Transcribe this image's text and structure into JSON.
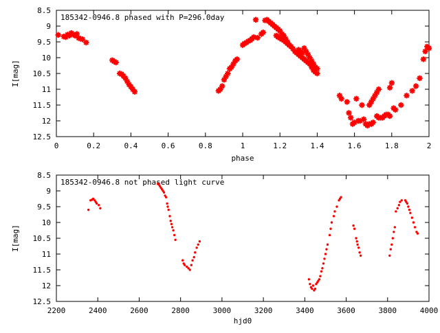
{
  "colors": {
    "points": "#ff0000",
    "axes": "#000000",
    "grid": "#000000",
    "background": "#ffffff"
  },
  "chart_data": [
    {
      "type": "scatter",
      "title": "185342-0946.8 phased with P=296.0day",
      "xlabel": "phase",
      "ylabel": "I[mag]",
      "xlim": [
        0,
        2
      ],
      "ylim": [
        12.5,
        8.5
      ],
      "y_inverted": true,
      "grid": false,
      "marker": "star",
      "x_ticks": [
        0,
        0.2,
        0.4,
        0.6,
        0.8,
        1,
        1.2,
        1.4,
        1.6,
        1.8,
        2
      ],
      "x_tick_labels": [
        "0",
        "0.2",
        "0.4",
        "0.6",
        "0.8",
        "1",
        "1.2",
        "1.4",
        "1.6",
        "1.8",
        "2"
      ],
      "y_ticks": [
        8.5,
        9,
        9.5,
        10,
        10.5,
        11,
        11.5,
        12,
        12.5
      ],
      "y_tick_labels": [
        "8.5",
        "9",
        "9.5",
        "10",
        "10.5",
        "11",
        "11.5",
        "12",
        "12.5"
      ],
      "series": [
        {
          "points": [
            [
              0.01,
              9.28
            ],
            [
              0.04,
              9.33
            ],
            [
              0.05,
              9.35
            ],
            [
              0.06,
              9.27
            ],
            [
              0.07,
              9.3
            ],
            [
              0.08,
              9.22
            ],
            [
              0.09,
              9.27
            ],
            [
              0.1,
              9.3
            ],
            [
              0.11,
              9.25
            ],
            [
              0.12,
              9.38
            ],
            [
              0.13,
              9.4
            ],
            [
              0.14,
              9.42
            ],
            [
              0.16,
              9.52
            ],
            [
              0.3,
              10.08
            ],
            [
              0.31,
              10.12
            ],
            [
              0.32,
              10.15
            ],
            [
              0.34,
              10.5
            ],
            [
              0.35,
              10.52
            ],
            [
              0.36,
              10.58
            ],
            [
              0.37,
              10.65
            ],
            [
              0.38,
              10.75
            ],
            [
              0.39,
              10.85
            ],
            [
              0.4,
              10.92
            ],
            [
              0.41,
              11.0
            ],
            [
              0.42,
              11.08
            ],
            [
              0.87,
              11.05
            ],
            [
              0.88,
              11.0
            ],
            [
              0.89,
              10.9
            ],
            [
              0.9,
              10.7
            ],
            [
              0.91,
              10.6
            ],
            [
              0.92,
              10.5
            ],
            [
              0.93,
              10.35
            ],
            [
              0.94,
              10.3
            ],
            [
              0.95,
              10.2
            ],
            [
              0.96,
              10.1
            ],
            [
              0.97,
              10.05
            ],
            [
              1.0,
              9.6
            ],
            [
              1.01,
              9.55
            ],
            [
              1.02,
              9.52
            ],
            [
              1.03,
              9.48
            ],
            [
              1.04,
              9.45
            ],
            [
              1.05,
              9.4
            ],
            [
              1.06,
              9.35
            ],
            [
              1.08,
              9.37
            ],
            [
              1.07,
              8.8
            ],
            [
              1.1,
              9.25
            ],
            [
              1.11,
              9.2
            ],
            [
              1.12,
              8.82
            ],
            [
              1.13,
              8.8
            ],
            [
              1.14,
              8.85
            ],
            [
              1.15,
              8.9
            ],
            [
              1.16,
              8.95
            ],
            [
              1.17,
              9.0
            ],
            [
              1.18,
              9.05
            ],
            [
              1.19,
              9.1
            ],
            [
              1.2,
              9.15
            ],
            [
              1.21,
              9.25
            ],
            [
              1.22,
              9.3
            ],
            [
              1.23,
              9.4
            ],
            [
              1.24,
              9.5
            ],
            [
              1.25,
              9.6
            ],
            [
              1.18,
              9.3
            ],
            [
              1.19,
              9.35
            ],
            [
              1.2,
              9.38
            ],
            [
              1.21,
              9.42
            ],
            [
              1.22,
              9.45
            ],
            [
              1.23,
              9.5
            ],
            [
              1.24,
              9.55
            ],
            [
              1.25,
              9.6
            ],
            [
              1.26,
              9.65
            ],
            [
              1.27,
              9.72
            ],
            [
              1.28,
              9.8
            ],
            [
              1.29,
              9.85
            ],
            [
              1.3,
              9.9
            ],
            [
              1.31,
              9.95
            ],
            [
              1.32,
              10.0
            ],
            [
              1.3,
              9.75
            ],
            [
              1.31,
              9.8
            ],
            [
              1.32,
              9.85
            ],
            [
              1.33,
              10.05
            ],
            [
              1.34,
              10.1
            ],
            [
              1.35,
              10.15
            ],
            [
              1.36,
              10.2
            ],
            [
              1.37,
              10.3
            ],
            [
              1.38,
              10.4
            ],
            [
              1.39,
              10.45
            ],
            [
              1.4,
              10.5
            ],
            [
              1.33,
              9.7
            ],
            [
              1.34,
              9.8
            ],
            [
              1.35,
              9.9
            ],
            [
              1.36,
              10.0
            ],
            [
              1.37,
              10.1
            ],
            [
              1.38,
              10.2
            ],
            [
              1.39,
              10.3
            ],
            [
              1.4,
              10.35
            ],
            [
              1.52,
              11.2
            ],
            [
              1.53,
              11.3
            ],
            [
              1.56,
              11.4
            ],
            [
              1.57,
              11.75
            ],
            [
              1.58,
              11.9
            ],
            [
              1.59,
              12.1
            ],
            [
              1.6,
              12.05
            ],
            [
              1.61,
              11.3
            ],
            [
              1.62,
              12.0
            ],
            [
              1.63,
              12.0
            ],
            [
              1.64,
              11.5
            ],
            [
              1.65,
              11.95
            ],
            [
              1.66,
              12.1
            ],
            [
              1.67,
              12.15
            ],
            [
              1.68,
              12.1
            ],
            [
              1.69,
              12.1
            ],
            [
              1.7,
              12.05
            ],
            [
              1.68,
              11.5
            ],
            [
              1.69,
              11.4
            ],
            [
              1.7,
              11.3
            ],
            [
              1.71,
              11.2
            ],
            [
              1.72,
              11.1
            ],
            [
              1.73,
              11.0
            ],
            [
              1.72,
              11.85
            ],
            [
              1.73,
              11.9
            ],
            [
              1.74,
              11.9
            ],
            [
              1.75,
              11.9
            ],
            [
              1.76,
              11.85
            ],
            [
              1.77,
              11.8
            ],
            [
              1.78,
              11.8
            ],
            [
              1.79,
              11.85
            ],
            [
              1.79,
              10.95
            ],
            [
              1.8,
              10.8
            ],
            [
              1.81,
              11.6
            ],
            [
              1.82,
              11.65
            ],
            [
              1.85,
              11.5
            ],
            [
              1.88,
              11.2
            ],
            [
              1.91,
              11.05
            ],
            [
              1.93,
              10.9
            ],
            [
              1.95,
              10.65
            ],
            [
              1.97,
              10.05
            ],
            [
              1.98,
              9.8
            ],
            [
              1.99,
              9.65
            ],
            [
              2.0,
              9.7
            ]
          ]
        }
      ]
    },
    {
      "type": "scatter",
      "title": "185342-0946.8 not phased light curve",
      "xlabel": "hjd0",
      "ylabel": "I[mag]",
      "xlim": [
        2200,
        4000
      ],
      "ylim": [
        12.5,
        8.5
      ],
      "y_inverted": true,
      "grid": false,
      "marker": "dot",
      "x_ticks": [
        2200,
        2400,
        2600,
        2800,
        3000,
        3200,
        3400,
        3600,
        3800,
        4000
      ],
      "x_tick_labels": [
        "2200",
        "2400",
        "2600",
        "2800",
        "3000",
        "3200",
        "3400",
        "3600",
        "3800",
        "4000"
      ],
      "y_ticks": [
        8.5,
        9,
        9.5,
        10,
        10.5,
        11,
        11.5,
        12,
        12.5
      ],
      "y_tick_labels": [
        "8.5",
        "9",
        "9.5",
        "10",
        "10.5",
        "11",
        "11.5",
        "12",
        "12.5"
      ],
      "series": [
        {
          "points": [
            [
              2355,
              9.6
            ],
            [
              2365,
              9.3
            ],
            [
              2372,
              9.28
            ],
            [
              2378,
              9.25
            ],
            [
              2385,
              9.3
            ],
            [
              2390,
              9.35
            ],
            [
              2395,
              9.4
            ],
            [
              2405,
              9.45
            ],
            [
              2412,
              9.55
            ],
            [
              2690,
              8.78
            ],
            [
              2695,
              8.8
            ],
            [
              2700,
              8.85
            ],
            [
              2705,
              8.9
            ],
            [
              2710,
              8.95
            ],
            [
              2715,
              9.0
            ],
            [
              2720,
              9.05
            ],
            [
              2725,
              9.15
            ],
            [
              2730,
              9.2
            ],
            [
              2735,
              9.4
            ],
            [
              2738,
              9.5
            ],
            [
              2742,
              9.6
            ],
            [
              2748,
              9.8
            ],
            [
              2752,
              9.95
            ],
            [
              2756,
              10.05
            ],
            [
              2760,
              10.15
            ],
            [
              2765,
              10.25
            ],
            [
              2770,
              10.4
            ],
            [
              2775,
              10.55
            ],
            [
              2810,
              11.2
            ],
            [
              2815,
              11.3
            ],
            [
              2820,
              11.35
            ],
            [
              2830,
              11.4
            ],
            [
              2838,
              11.45
            ],
            [
              2845,
              11.5
            ],
            [
              2852,
              11.35
            ],
            [
              2858,
              11.2
            ],
            [
              2865,
              11.1
            ],
            [
              2870,
              10.95
            ],
            [
              2878,
              10.8
            ],
            [
              2885,
              10.7
            ],
            [
              2892,
              10.6
            ],
            [
              3420,
              11.8
            ],
            [
              3425,
              11.95
            ],
            [
              3430,
              12.05
            ],
            [
              3435,
              12.1
            ],
            [
              3440,
              12.0
            ],
            [
              3445,
              12.15
            ],
            [
              3450,
              12.1
            ],
            [
              3455,
              11.95
            ],
            [
              3460,
              11.9
            ],
            [
              3465,
              11.85
            ],
            [
              3470,
              11.8
            ],
            [
              3475,
              11.7
            ],
            [
              3480,
              11.55
            ],
            [
              3485,
              11.45
            ],
            [
              3490,
              11.3
            ],
            [
              3495,
              11.15
            ],
            [
              3500,
              11.0
            ],
            [
              3505,
              10.85
            ],
            [
              3510,
              10.7
            ],
            [
              3520,
              10.4
            ],
            [
              3525,
              10.2
            ],
            [
              3530,
              10.0
            ],
            [
              3540,
              9.8
            ],
            [
              3545,
              9.65
            ],
            [
              3555,
              9.5
            ],
            [
              3565,
              9.3
            ],
            [
              3570,
              9.25
            ],
            [
              3575,
              9.2
            ],
            [
              3635,
              10.1
            ],
            [
              3640,
              10.2
            ],
            [
              3648,
              10.5
            ],
            [
              3652,
              10.6
            ],
            [
              3655,
              10.7
            ],
            [
              3660,
              10.8
            ],
            [
              3665,
              10.95
            ],
            [
              3670,
              11.05
            ],
            [
              3810,
              11.05
            ],
            [
              3815,
              10.85
            ],
            [
              3820,
              10.7
            ],
            [
              3825,
              10.5
            ],
            [
              3830,
              10.3
            ],
            [
              3835,
              10.15
            ],
            [
              3840,
              9.65
            ],
            [
              3848,
              9.55
            ],
            [
              3855,
              9.45
            ],
            [
              3860,
              9.35
            ],
            [
              3868,
              9.3
            ],
            [
              3885,
              9.3
            ],
            [
              3890,
              9.35
            ],
            [
              3895,
              9.4
            ],
            [
              3900,
              9.5
            ],
            [
              3905,
              9.6
            ],
            [
              3910,
              9.7
            ],
            [
              3918,
              9.85
            ],
            [
              3925,
              10.0
            ],
            [
              3932,
              10.15
            ],
            [
              3940,
              10.3
            ],
            [
              3945,
              10.35
            ]
          ]
        }
      ]
    }
  ]
}
